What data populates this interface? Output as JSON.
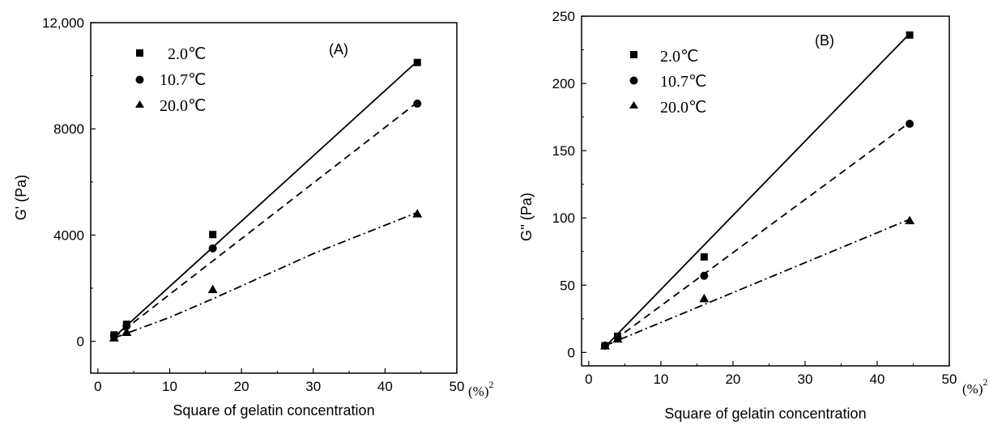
{
  "chart_data": [
    {
      "type": "scatter",
      "panel_label": "(A)",
      "xlabel": "Square of gelatin concentration",
      "x_unit": "(%)",
      "x_unit_sup": "2",
      "ylabel": "G' (Pa)",
      "xlim": [
        -1,
        50
      ],
      "ylim": [
        -1200,
        12000
      ],
      "xticks": [
        0,
        10,
        20,
        30,
        40,
        50
      ],
      "xtick_labels": [
        "0",
        "10",
        "20",
        "30",
        "40",
        "50"
      ],
      "yticks": [
        0,
        4000,
        8000,
        12000
      ],
      "ytick_labels": [
        "0",
        "4000",
        "8000",
        "12,000"
      ],
      "legend_position": "top-left",
      "grid": false,
      "x": [
        2.25,
        4,
        16,
        44.5
      ],
      "series": [
        {
          "name": "2.0℃",
          "marker": "square",
          "line": "solid",
          "values": [
            240,
            640,
            4020,
            10500
          ],
          "fit": [
            [
              2.25,
              160
            ],
            [
              44.5,
              10550
            ]
          ]
        },
        {
          "name": "10.7℃",
          "marker": "circle",
          "line": "dashed",
          "values": [
            220,
            580,
            3500,
            8950
          ],
          "fit": [
            [
              2.25,
              140
            ],
            [
              44.5,
              9000
            ]
          ]
        },
        {
          "name": "20.0℃",
          "marker": "triangle",
          "line": "dashdot",
          "values": [
            130,
            340,
            1950,
            4800
          ],
          "fit": [
            [
              2.25,
              120
            ],
            [
              4,
              300
            ],
            [
              10,
              900
            ],
            [
              16,
              1600
            ],
            [
              30,
              3300
            ],
            [
              44.5,
              4850
            ]
          ]
        }
      ]
    },
    {
      "type": "scatter",
      "panel_label": "(B)",
      "xlabel": "Square of gelatin concentration",
      "x_unit": "(%)",
      "x_unit_sup": "2",
      "ylabel": "G'' (Pa)",
      "xlim": [
        -1,
        50
      ],
      "ylim": [
        -10,
        250
      ],
      "xticks": [
        0,
        10,
        20,
        30,
        40,
        50
      ],
      "xtick_labels": [
        "0",
        "10",
        "20",
        "30",
        "40",
        "50"
      ],
      "yticks": [
        0,
        50,
        100,
        150,
        200,
        250
      ],
      "ytick_labels": [
        "0",
        "50",
        "100",
        "150",
        "200",
        "250"
      ],
      "legend_position": "top-left",
      "grid": false,
      "x": [
        2.25,
        4,
        16,
        44.5
      ],
      "series": [
        {
          "name": "2.0℃",
          "marker": "square",
          "line": "solid",
          "values": [
            5,
            12,
            71,
            236
          ],
          "fit": [
            [
              2.25,
              4
            ],
            [
              44.5,
              237
            ]
          ]
        },
        {
          "name": "10.7℃",
          "marker": "circle",
          "line": "dashed",
          "values": [
            5,
            11,
            57,
            170
          ],
          "fit": [
            [
              2.25,
              4
            ],
            [
              44.5,
              171
            ]
          ]
        },
        {
          "name": "20.0℃",
          "marker": "triangle",
          "line": "dashdot",
          "values": [
            5,
            10,
            40,
            98
          ],
          "fit": [
            [
              2.25,
              5
            ],
            [
              44.5,
              99
            ]
          ]
        }
      ]
    }
  ]
}
